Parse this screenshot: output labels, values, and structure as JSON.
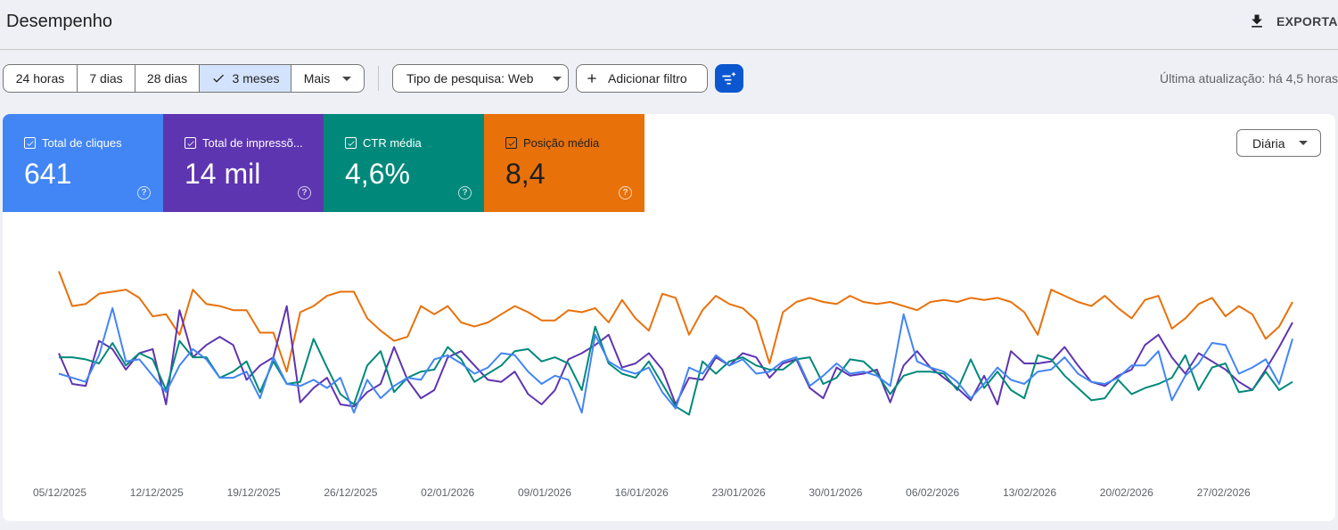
{
  "header": {
    "title": "Desempenho",
    "export_label": "EXPORTAR"
  },
  "toolbar": {
    "ranges": [
      "24 horas",
      "7 dias",
      "28 dias",
      "3 meses",
      "Mais"
    ],
    "selected_range": "3 meses",
    "search_type_label": "Tipo de pesquisa: Web",
    "add_filter_label": "Adicionar filtro",
    "last_update": "Última atualização: há 4,5 horas"
  },
  "metrics": [
    {
      "label": "Total de cliques",
      "value": "641",
      "help": "?",
      "color": "#4285f4",
      "checked": true
    },
    {
      "label": "Total de impressõ...",
      "value": "14 mil",
      "help": "?",
      "color": "#5e35b1",
      "checked": true
    },
    {
      "label": "CTR média",
      "value": "4,6%",
      "help": "?",
      "color": "#00897b",
      "checked": true
    },
    {
      "label": "Posição média",
      "value": "8,4",
      "help": "?",
      "color": "#e8710a",
      "checked": true
    }
  ],
  "granularity": "Diária",
  "chart_data": {
    "type": "line",
    "x_tick_labels": [
      "05/12/2025",
      "12/12/2025",
      "19/12/2025",
      "26/12/2025",
      "02/01/2026",
      "09/01/2026",
      "16/01/2026",
      "23/01/2026",
      "30/01/2026",
      "06/02/2026",
      "13/02/2026",
      "20/02/2026",
      "27/02/2026"
    ],
    "points_per_series": 93,
    "y_axis_visible": false,
    "series": [
      {
        "color": "#e8710a",
        "normalized": [
          0.95,
          0.78,
          0.79,
          0.84,
          0.85,
          0.86,
          0.82,
          0.73,
          0.74,
          0.64,
          0.86,
          0.79,
          0.78,
          0.76,
          0.76,
          0.65,
          0.65,
          0.46,
          0.75,
          0.78,
          0.83,
          0.85,
          0.85,
          0.72,
          0.66,
          0.61,
          0.63,
          0.78,
          0.74,
          0.78,
          0.7,
          0.68,
          0.7,
          0.74,
          0.78,
          0.75,
          0.71,
          0.71,
          0.76,
          0.75,
          0.77,
          0.7,
          0.81,
          0.72,
          0.66,
          0.84,
          0.82,
          0.64,
          0.76,
          0.83,
          0.79,
          0.77,
          0.71,
          0.5,
          0.75,
          0.8,
          0.82,
          0.8,
          0.79,
          0.83,
          0.8,
          0.79,
          0.8,
          0.78,
          0.76,
          0.8,
          0.81,
          0.8,
          0.82,
          0.81,
          0.82,
          0.8,
          0.75,
          0.64,
          0.86,
          0.83,
          0.8,
          0.78,
          0.83,
          0.77,
          0.72,
          0.81,
          0.83,
          0.67,
          0.72,
          0.79,
          0.82,
          0.73,
          0.78,
          0.74,
          0.62,
          0.68,
          0.8
        ]
      },
      {
        "color": "#5e35b1",
        "normalized": [
          0.55,
          0.4,
          0.39,
          0.61,
          0.57,
          0.47,
          0.55,
          0.57,
          0.3,
          0.76,
          0.53,
          0.59,
          0.63,
          0.59,
          0.42,
          0.49,
          0.53,
          0.78,
          0.31,
          0.38,
          0.43,
          0.3,
          0.29,
          0.36,
          0.4,
          0.58,
          0.42,
          0.33,
          0.37,
          0.53,
          0.56,
          0.49,
          0.42,
          0.41,
          0.46,
          0.35,
          0.3,
          0.37,
          0.52,
          0.55,
          0.59,
          0.64,
          0.48,
          0.5,
          0.55,
          0.47,
          0.3,
          0.43,
          0.42,
          0.53,
          0.49,
          0.55,
          0.53,
          0.43,
          0.5,
          0.52,
          0.38,
          0.33,
          0.48,
          0.44,
          0.45,
          0.47,
          0.31,
          0.49,
          0.56,
          0.48,
          0.43,
          0.38,
          0.32,
          0.44,
          0.3,
          0.56,
          0.5,
          0.5,
          0.51,
          0.58,
          0.49,
          0.41,
          0.39,
          0.44,
          0.47,
          0.59,
          0.64,
          0.53,
          0.45,
          0.55,
          0.51,
          0.47,
          0.41,
          0.37,
          0.47,
          0.58,
          0.7
        ]
      },
      {
        "color": "#00897b",
        "normalized": [
          0.53,
          0.53,
          0.52,
          0.5,
          0.6,
          0.49,
          0.55,
          0.52,
          0.37,
          0.61,
          0.53,
          0.53,
          0.43,
          0.46,
          0.51,
          0.36,
          0.51,
          0.4,
          0.41,
          0.62,
          0.48,
          0.35,
          0.3,
          0.49,
          0.56,
          0.36,
          0.43,
          0.46,
          0.47,
          0.58,
          0.52,
          0.41,
          0.45,
          0.49,
          0.56,
          0.57,
          0.51,
          0.53,
          0.5,
          0.37,
          0.68,
          0.5,
          0.45,
          0.43,
          0.51,
          0.4,
          0.29,
          0.25,
          0.51,
          0.45,
          0.51,
          0.53,
          0.49,
          0.47,
          0.47,
          0.52,
          0.53,
          0.4,
          0.43,
          0.52,
          0.51,
          0.45,
          0.35,
          0.44,
          0.46,
          0.46,
          0.45,
          0.37,
          0.52,
          0.38,
          0.46,
          0.37,
          0.33,
          0.54,
          0.52,
          0.44,
          0.38,
          0.32,
          0.33,
          0.42,
          0.35,
          0.38,
          0.4,
          0.43,
          0.54,
          0.37,
          0.48,
          0.5,
          0.36,
          0.37,
          0.46,
          0.37,
          0.41
        ]
      },
      {
        "color": "#4285f4",
        "normalized": [
          0.45,
          0.43,
          0.41,
          0.54,
          0.77,
          0.51,
          0.52,
          0.44,
          0.36,
          0.49,
          0.57,
          0.52,
          0.43,
          0.43,
          0.46,
          0.33,
          0.53,
          0.4,
          0.39,
          0.42,
          0.38,
          0.43,
          0.26,
          0.42,
          0.33,
          0.39,
          0.43,
          0.42,
          0.52,
          0.54,
          0.5,
          0.45,
          0.48,
          0.55,
          0.54,
          0.46,
          0.4,
          0.44,
          0.42,
          0.26,
          0.64,
          0.51,
          0.47,
          0.45,
          0.48,
          0.36,
          0.28,
          0.48,
          0.45,
          0.54,
          0.49,
          0.52,
          0.45,
          0.46,
          0.51,
          0.53,
          0.39,
          0.44,
          0.5,
          0.45,
          0.46,
          0.44,
          0.39,
          0.74,
          0.51,
          0.48,
          0.46,
          0.41,
          0.33,
          0.4,
          0.48,
          0.42,
          0.4,
          0.46,
          0.47,
          0.53,
          0.45,
          0.41,
          0.4,
          0.43,
          0.49,
          0.49,
          0.56,
          0.32,
          0.44,
          0.5,
          0.6,
          0.59,
          0.45,
          0.48,
          0.52,
          0.4,
          0.62
        ]
      }
    ]
  }
}
